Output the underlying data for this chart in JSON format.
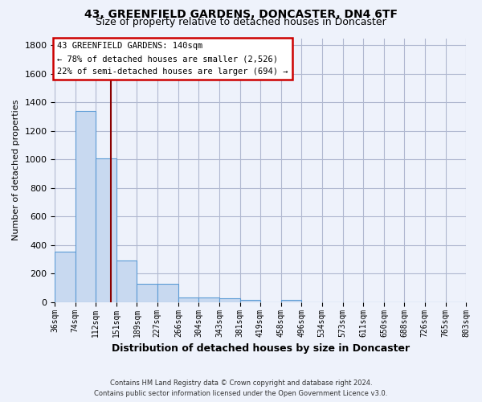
{
  "title": "43, GREENFIELD GARDENS, DONCASTER, DN4 6TF",
  "subtitle": "Size of property relative to detached houses in Doncaster",
  "xlabel": "Distribution of detached houses by size in Doncaster",
  "ylabel": "Number of detached properties",
  "footer_line1": "Contains HM Land Registry data © Crown copyright and database right 2024.",
  "footer_line2": "Contains public sector information licensed under the Open Government Licence v3.0.",
  "property_label": "43 GREENFIELD GARDENS: 140sqm",
  "annotation_line1": "← 78% of detached houses are smaller (2,526)",
  "annotation_line2": "22% of semi-detached houses are larger (694) →",
  "bin_edges": [
    36,
    74,
    112,
    151,
    189,
    227,
    266,
    304,
    343,
    381,
    419,
    458,
    496,
    534,
    573,
    611,
    650,
    688,
    726,
    765,
    803
  ],
  "bar_heights": [
    355,
    1340,
    1005,
    290,
    130,
    130,
    35,
    35,
    25,
    18,
    0,
    18,
    0,
    0,
    0,
    0,
    0,
    0,
    0,
    0
  ],
  "bar_color": "#c8d9f0",
  "bar_edge_color": "#5b9bd5",
  "vline_color": "#8b0000",
  "vline_x": 140,
  "ylim": [
    0,
    1850
  ],
  "yticks": [
    0,
    200,
    400,
    600,
    800,
    1000,
    1200,
    1400,
    1600,
    1800
  ],
  "bg_color": "#eef2fb",
  "grid_color": "#d8dff0",
  "annotation_box_color": "#ffffff",
  "annotation_box_edge": "#cc0000",
  "title_fontsize": 10,
  "subtitle_fontsize": 9
}
